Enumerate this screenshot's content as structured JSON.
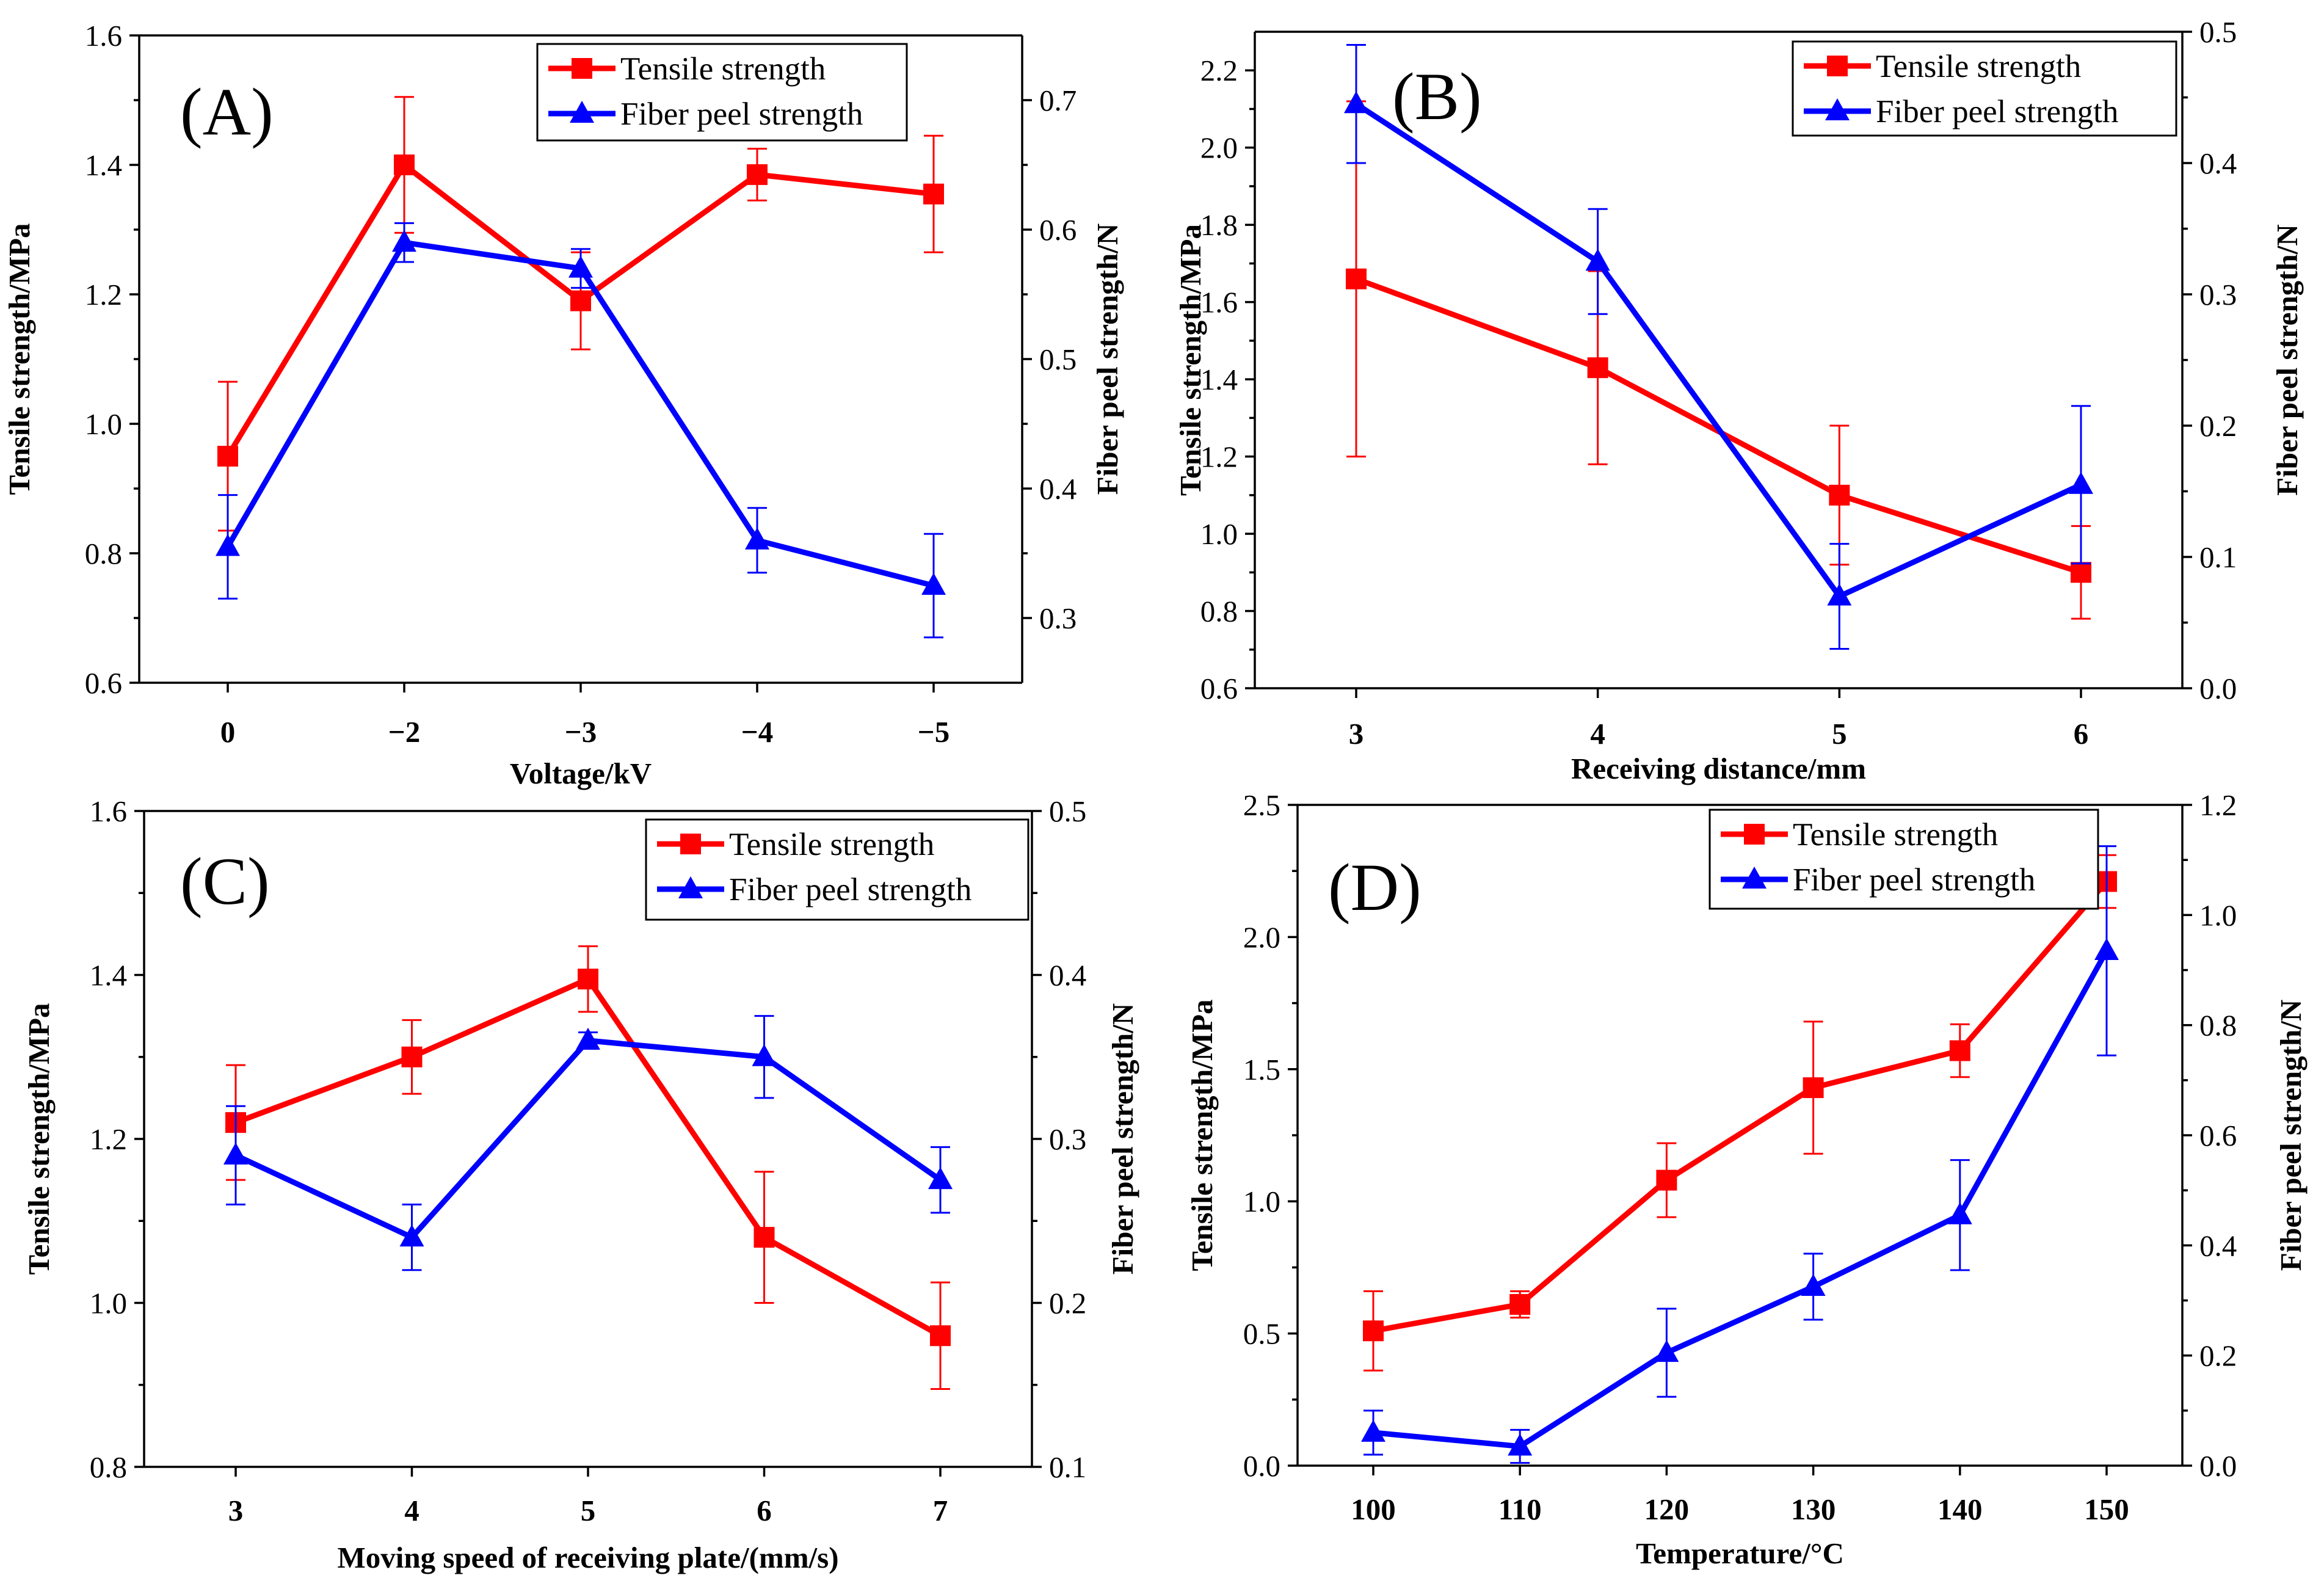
{
  "chart_data": [
    {
      "type": "line",
      "panel": "(A)",
      "xlabel": "Voltage/kV",
      "ylabel": "Tensile strength/MPa",
      "y2label": "Fiber peel strength/N",
      "categories": [
        "0",
        "−2",
        "−3",
        "−4",
        "−5"
      ],
      "ylim": [
        0.6,
        1.6
      ],
      "yticks": [
        "0.6",
        "0.8",
        "1.0",
        "1.2",
        "1.4",
        "1.6"
      ],
      "y2lim": [
        0.25,
        0.75
      ],
      "y2ticks": [
        "0.3",
        "0.4",
        "0.5",
        "0.6",
        "0.7"
      ],
      "legend_position": "top-right",
      "series": [
        {
          "name": "Tensile strength",
          "axis": "left",
          "color": "#ff0000",
          "marker": "square",
          "values": [
            0.95,
            1.4,
            1.19,
            1.385,
            1.355
          ],
          "errors": [
            0.115,
            0.105,
            0.075,
            0.04,
            0.09
          ]
        },
        {
          "name": "Fiber peel strength",
          "axis": "right",
          "color": "#0000ff",
          "marker": "triangle",
          "values": [
            0.355,
            0.59,
            0.57,
            0.36,
            0.325
          ],
          "errors": [
            0.04,
            0.015,
            0.015,
            0.025,
            0.04
          ]
        }
      ]
    },
    {
      "type": "line",
      "panel": "(B)",
      "xlabel": "Receiving distance/mm",
      "ylabel": "Tensile strength/MPa",
      "y2label": "Fiber peel strength/N",
      "categories": [
        "3",
        "4",
        "5",
        "6"
      ],
      "ylim": [
        0.6,
        2.3
      ],
      "yticks": [
        "0.6",
        "0.8",
        "1.0",
        "1.2",
        "1.4",
        "1.6",
        "1.8",
        "2.0",
        "2.2"
      ],
      "y2lim": [
        0.0,
        0.5
      ],
      "y2ticks": [
        "0.0",
        "0.1",
        "0.2",
        "0.3",
        "0.4",
        "0.5"
      ],
      "legend_position": "top-right",
      "series": [
        {
          "name": "Tensile strength",
          "axis": "left",
          "color": "#ff0000",
          "marker": "square",
          "values": [
            1.66,
            1.43,
            1.1,
            0.9
          ],
          "errors": [
            0.46,
            0.25,
            0.18,
            0.12
          ]
        },
        {
          "name": "Fiber peel strength",
          "axis": "right",
          "color": "#0000ff",
          "marker": "triangle",
          "values": [
            0.445,
            0.325,
            0.07,
            0.155
          ],
          "errors": [
            0.045,
            0.04,
            0.04,
            0.06
          ]
        }
      ]
    },
    {
      "type": "line",
      "panel": "(C)",
      "xlabel": "Moving speed of receiving plate/(mm/s)",
      "ylabel": "Tensile strength/MPa",
      "y2label": "Fiber peel strength/N",
      "categories": [
        "3",
        "4",
        "5",
        "6",
        "7"
      ],
      "ylim": [
        0.8,
        1.6
      ],
      "yticks": [
        "0.8",
        "1.0",
        "1.2",
        "1.4",
        "1.6"
      ],
      "y2lim": [
        0.1,
        0.5
      ],
      "y2ticks": [
        "0.1",
        "0.2",
        "0.3",
        "0.4",
        "0.5"
      ],
      "legend_position": "top-right",
      "series": [
        {
          "name": "Tensile strength",
          "axis": "left",
          "color": "#ff0000",
          "marker": "square",
          "values": [
            1.22,
            1.3,
            1.395,
            1.08,
            0.96
          ],
          "errors": [
            0.07,
            0.045,
            0.04,
            0.08,
            0.065
          ]
        },
        {
          "name": "Fiber peel strength",
          "axis": "right",
          "color": "#0000ff",
          "marker": "triangle",
          "values": [
            0.29,
            0.24,
            0.36,
            0.35,
            0.275
          ],
          "errors": [
            0.03,
            0.02,
            0.005,
            0.025,
            0.02
          ]
        }
      ]
    },
    {
      "type": "line",
      "panel": "(D)",
      "xlabel": "Temperature/°C",
      "ylabel": "Tensile strength/MPa",
      "y2label": "Fiber peel strength/N",
      "categories": [
        "100",
        "110",
        "120",
        "130",
        "140",
        "150"
      ],
      "ylim": [
        0.0,
        2.5
      ],
      "yticks": [
        "0.0",
        "0.5",
        "1.0",
        "1.5",
        "2.0",
        "2.5"
      ],
      "y2lim": [
        0.0,
        1.2
      ],
      "y2ticks": [
        "0.0",
        "0.2",
        "0.4",
        "0.6",
        "0.8",
        "1.0",
        "1.2"
      ],
      "legend_position": "top-right",
      "series": [
        {
          "name": "Tensile strength",
          "axis": "left",
          "color": "#ff0000",
          "marker": "square",
          "values": [
            0.51,
            0.61,
            1.08,
            1.43,
            1.57,
            2.21
          ],
          "errors": [
            0.15,
            0.05,
            0.14,
            0.25,
            0.1,
            0.1
          ]
        },
        {
          "name": "Fiber peel strength",
          "axis": "right",
          "color": "#0000ff",
          "marker": "triangle",
          "values": [
            0.06,
            0.035,
            0.205,
            0.325,
            0.455,
            0.935
          ],
          "errors": [
            0.04,
            0.03,
            0.08,
            0.06,
            0.1,
            0.19
          ]
        }
      ]
    }
  ]
}
